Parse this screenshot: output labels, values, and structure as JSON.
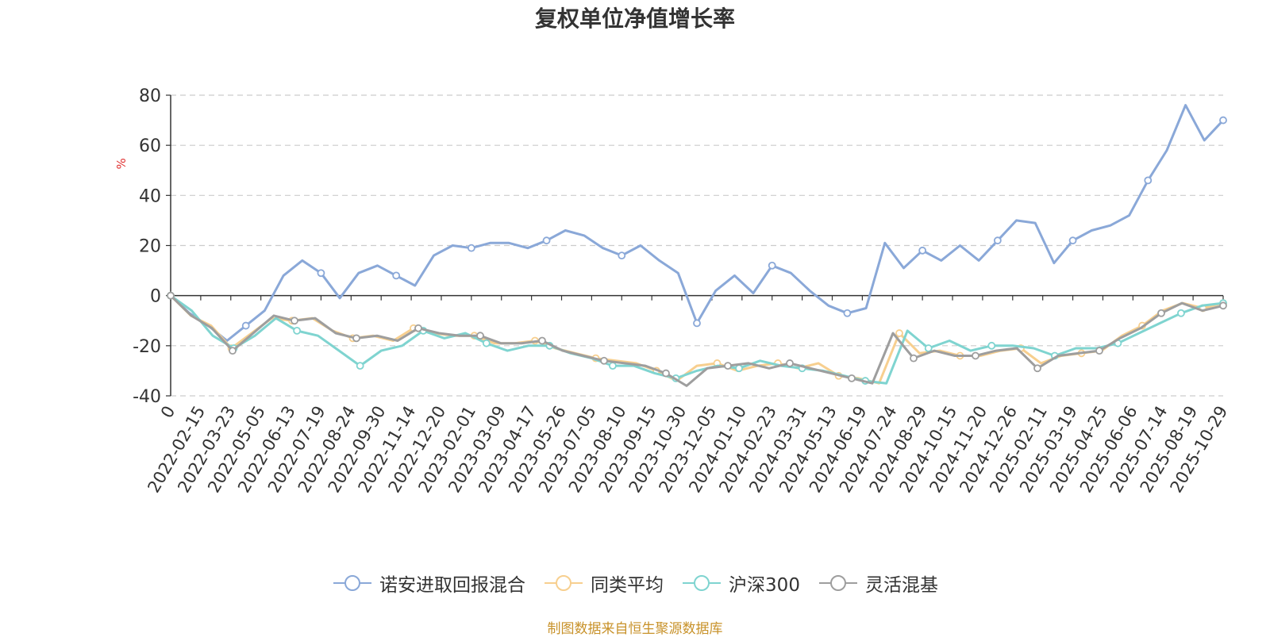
{
  "chart_data": {
    "type": "line",
    "title": "复权单位净值增长率",
    "ylabel": "%",
    "ylim": [
      -40,
      80
    ],
    "yticks": [
      -40,
      -20,
      0,
      20,
      40,
      60,
      80
    ],
    "grid": true,
    "legend_position": "bottom",
    "x_tick_labels": [
      "0",
      "2022-02-15",
      "2022-03-23",
      "2022-05-05",
      "2022-06-13",
      "2022-07-19",
      "2022-08-24",
      "2022-09-30",
      "2022-11-14",
      "2022-12-20",
      "2023-02-01",
      "2023-03-09",
      "2023-04-17",
      "2023-05-26",
      "2023-07-05",
      "2023-08-10",
      "2023-09-15",
      "2023-10-30",
      "2023-12-05",
      "2024-01-10",
      "2024-02-23",
      "2024-03-31",
      "2024-05-13",
      "2024-06-19",
      "2024-07-24",
      "2024-08-29",
      "2024-10-15",
      "2024-11-20",
      "2024-12-26",
      "2025-02-11",
      "2025-03-19",
      "2025-04-25",
      "2025-06-06",
      "2025-07-14",
      "2025-08-19",
      "2025-10-29"
    ],
    "series": [
      {
        "name": "诺安进取回报混合",
        "color": "#8aa8d8",
        "values": [
          0,
          -7,
          -12,
          -18,
          -12,
          -6,
          8,
          14,
          9,
          -1,
          9,
          12,
          8,
          4,
          16,
          20,
          19,
          21,
          21,
          19,
          22,
          26,
          24,
          19,
          16,
          20,
          14,
          9,
          -11,
          2,
          8,
          1,
          12,
          9,
          2,
          -4,
          -7,
          -5,
          21,
          11,
          18,
          14,
          20,
          14,
          22,
          30,
          29,
          13,
          22,
          26,
          28,
          32,
          46,
          58,
          76,
          62,
          70
        ]
      },
      {
        "name": "同类平均",
        "color": "#f7cf8f",
        "values": [
          0,
          -8,
          -12,
          -21,
          -15,
          -9,
          -10,
          -9,
          -14,
          -17,
          -16,
          -18,
          -13,
          -15,
          -16,
          -16,
          -19,
          -19,
          -18,
          -21,
          -23,
          -25,
          -26,
          -27,
          -30,
          -34,
          -28,
          -27,
          -30,
          -28,
          -27,
          -29,
          -27,
          -32,
          -33,
          -35,
          -15,
          -23,
          -22,
          -24,
          -24,
          -22,
          -21,
          -27,
          -24,
          -23,
          -22,
          -16,
          -12,
          -6,
          -3,
          -5,
          -3
        ]
      },
      {
        "name": "沪深300",
        "color": "#7fd4d0",
        "values": [
          0,
          -6,
          -16,
          -21,
          -16,
          -9,
          -14,
          -16,
          -22,
          -28,
          -22,
          -20,
          -14,
          -17,
          -15,
          -19,
          -22,
          -20,
          -20,
          -23,
          -25,
          -28,
          -28,
          -31,
          -33,
          -30,
          -28,
          -29,
          -26,
          -28,
          -29,
          -30,
          -32,
          -34,
          -35,
          -14,
          -21,
          -18,
          -22,
          -20,
          -20,
          -21,
          -24,
          -21,
          -21,
          -19,
          -15,
          -11,
          -7,
          -4,
          -3
        ]
      },
      {
        "name": "灵活混基",
        "color": "#9e9e9e",
        "values": [
          0,
          -8,
          -13,
          -22,
          -15,
          -8,
          -10,
          -9,
          -15,
          -17,
          -16,
          -18,
          -13,
          -15,
          -16,
          -16,
          -19,
          -19,
          -18,
          -22,
          -24,
          -26,
          -27,
          -28,
          -31,
          -36,
          -29,
          -28,
          -27,
          -29,
          -27,
          -29,
          -31,
          -33,
          -35,
          -15,
          -25,
          -22,
          -24,
          -24,
          -22,
          -21,
          -29,
          -24,
          -23,
          -22,
          -17,
          -13,
          -7,
          -3,
          -6,
          -4
        ]
      }
    ]
  },
  "source_note": "制图数据来自恒生聚源数据库"
}
